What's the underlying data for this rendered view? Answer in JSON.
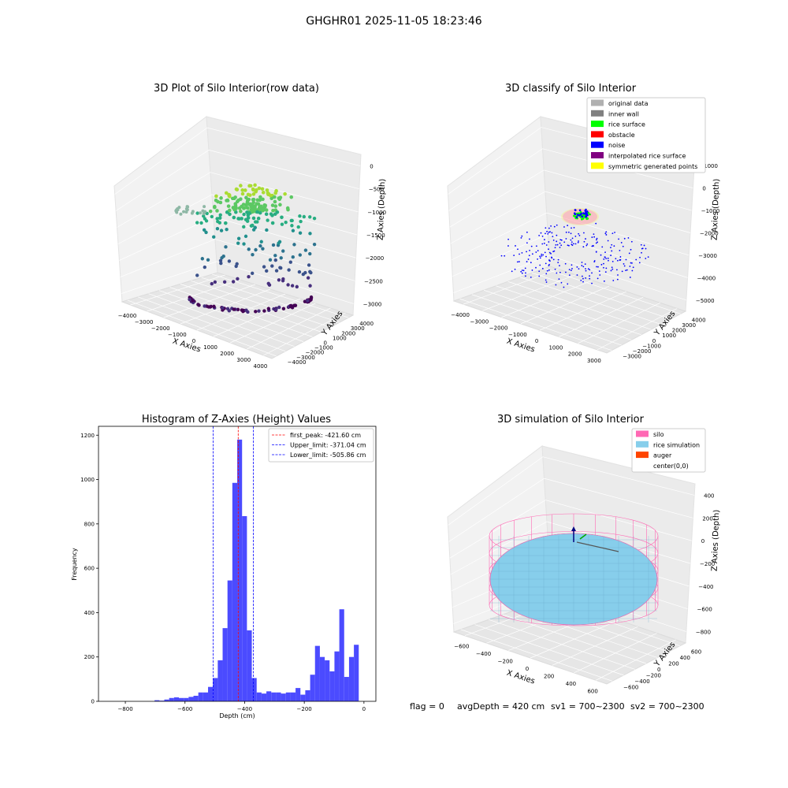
{
  "figure": {
    "suptitle": "GHGHR01 2025-11-05 18:23:46",
    "footer": {
      "flag": "flag = 0",
      "avg_depth": "avgDepth = 420 cm",
      "sv1": "sv1 = 700~2300",
      "sv2": "sv2 = 700~2300"
    }
  },
  "colors": {
    "original_data": "#b0b0b0",
    "inner_wall": "#808080",
    "rice_surface": "#00ff00",
    "obstacle": "#ff0000",
    "noise": "#0000ff",
    "interpolated_rice_surface": "#800080",
    "symmetric_generated_points": "#ffff00",
    "silo": "#ff69b4",
    "rice_simulation": "#87ceeb",
    "auger": "#ff4500",
    "hist_bar": "#4b4bff",
    "first_peak_line": "#ff0000",
    "limit_line": "#0000ff"
  },
  "chart_data": [
    {
      "type": "scatter3d",
      "title": "3D Plot of Silo Interior(row data)",
      "xlabel": "X Axies",
      "ylabel": "Y Axies",
      "zlabel": "Z Axies (Depth)",
      "x_ticks": [
        "−4000",
        "−3000",
        "−2000",
        "−1000",
        "0",
        "1000",
        "2000",
        "3000",
        "4000"
      ],
      "y_ticks": [
        "−4000",
        "−3000",
        "−2000",
        "−1000",
        "0",
        "1000",
        "2000",
        "3000",
        "4000"
      ],
      "z_ticks": [
        "0",
        "−500",
        "−1000",
        "−1500",
        "−2000",
        "−2500",
        "−3000"
      ],
      "colormap": "viridis",
      "grid": true
    },
    {
      "type": "scatter3d",
      "title": "3D classify of Silo Interior",
      "xlabel": "X Axies",
      "ylabel": "Y Axies",
      "zlabel": "Z Axies (Depth)",
      "x_ticks": [
        "−4000",
        "−3000",
        "−2000",
        "−1000",
        "0",
        "1000",
        "2000",
        "3000"
      ],
      "y_ticks": [
        "−3000",
        "−2000",
        "−1000",
        "0",
        "1000",
        "2000",
        "3000",
        "4000"
      ],
      "z_ticks": [
        "1000",
        "0",
        "−1000",
        "−2000",
        "−3000",
        "−4000",
        "−5000"
      ],
      "legend": [
        "original data",
        "inner wall",
        "rice surface",
        "obstacle",
        "noise",
        "interpolated rice surface",
        "symmetric generated points"
      ],
      "legend_placement": "top-right",
      "grid": true
    },
    {
      "type": "bar",
      "title": "Histogram of Z-Axies (Height) Values",
      "xlabel": "Depth (cm)",
      "ylabel": "Frequency",
      "xlim": [
        -890,
        40
      ],
      "ylim": [
        0,
        1240
      ],
      "x_ticks": [
        -800,
        -600,
        -400,
        -200,
        0
      ],
      "x_tick_labels": [
        "−800",
        "−600",
        "−400",
        "−200",
        "0"
      ],
      "y_ticks": [
        0,
        200,
        400,
        600,
        800,
        1000,
        1200
      ],
      "bin_width": 16.3,
      "bin_starts": [
        -734.6,
        -718.3,
        -702.0,
        -685.7,
        -669.4,
        -653.1,
        -636.8,
        -620.5,
        -604.2,
        -587.9,
        -571.6,
        -555.3,
        -539.0,
        -522.7,
        -506.4,
        -490.1,
        -473.8,
        -457.5,
        -441.2,
        -424.9,
        -408.6,
        -392.3,
        -376.0,
        -359.7,
        -343.4,
        -327.1,
        -310.8,
        -294.5,
        -278.2,
        -261.9,
        -245.6,
        -229.3,
        -213.0,
        -196.7,
        -180.4,
        -164.1,
        -147.8,
        -131.5,
        -115.2,
        -98.9,
        -82.6,
        -66.3,
        -50.0,
        -33.7,
        -17.4
      ],
      "values": [
        0,
        0,
        5,
        3,
        8,
        15,
        18,
        15,
        15,
        20,
        25,
        40,
        40,
        65,
        105,
        185,
        330,
        545,
        985,
        1180,
        835,
        320,
        105,
        40,
        35,
        45,
        40,
        40,
        35,
        40,
        40,
        60,
        30,
        50,
        120,
        250,
        200,
        185,
        135,
        225,
        415,
        110,
        200,
        255,
        0
      ],
      "vlines": [
        {
          "label": "first_peak: -421.60 cm",
          "x": -421.6,
          "color_key": "first_peak_line"
        },
        {
          "label": "Upper_limit: -371.04 cm",
          "x": -371.04,
          "color_key": "limit_line"
        },
        {
          "label": "Lower_limit: -505.86 cm",
          "x": -505.86,
          "color_key": "limit_line"
        }
      ],
      "legend_placement": "top-right"
    },
    {
      "type": "surface3d",
      "title": "3D simulation of Silo Interior",
      "xlabel": "X Axies",
      "ylabel": "Y Axies",
      "zlabel": "Z Axies (Depth)",
      "x_ticks": [
        "−600",
        "−400",
        "−200",
        "0",
        "200",
        "400",
        "600"
      ],
      "y_ticks": [
        "−600",
        "−400",
        "−200",
        "0",
        "200",
        "400",
        "600"
      ],
      "z_ticks": [
        "400",
        "200",
        "0",
        "−200",
        "−400",
        "−600",
        "−800"
      ],
      "legend": [
        "silo",
        "rice simulation",
        "auger",
        "center(0,0)"
      ],
      "legend_placement": "top-right",
      "grid": true
    }
  ]
}
